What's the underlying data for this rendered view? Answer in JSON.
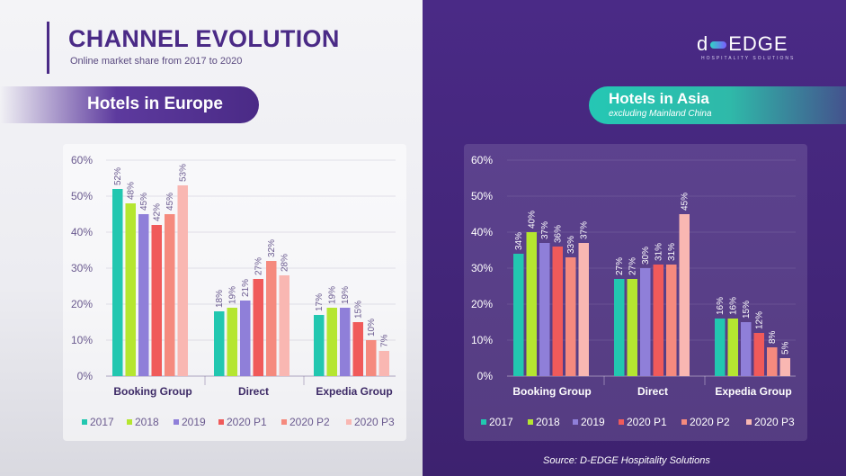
{
  "header": {
    "title": "CHANNEL EVOLUTION",
    "subtitle": "Online market share from 2017 to 2020"
  },
  "logo": {
    "text_left": "d",
    "text_right": "EDGE",
    "tagline": "HOSPITALITY SOLUTIONS"
  },
  "europe_label": "Hotels in Europe",
  "asia_label": "Hotels in Asia",
  "asia_sublabel": "excluding Mainland China",
  "source": "Source: D-EDGE Hospitality Solutions",
  "colors": {
    "2017": "#22c7b0",
    "2018": "#b5e630",
    "2019": "#8f7fd9",
    "2020 P1": "#f05a5a",
    "2020 P2": "#f58a7e",
    "2020 P3": "#f9b7b2"
  },
  "chart_data": [
    {
      "type": "bar",
      "title": "Hotels in Europe",
      "categories": [
        "Booking Group",
        "Direct",
        "Expedia Group"
      ],
      "series": [
        {
          "name": "2017",
          "values": [
            52,
            18,
            17
          ]
        },
        {
          "name": "2018",
          "values": [
            48,
            19,
            19
          ]
        },
        {
          "name": "2019",
          "values": [
            45,
            21,
            19
          ]
        },
        {
          "name": "2020 P1",
          "values": [
            42,
            27,
            15
          ]
        },
        {
          "name": "2020 P2",
          "values": [
            45,
            32,
            10
          ]
        },
        {
          "name": "2020 P3",
          "values": [
            53,
            28,
            7
          ]
        }
      ],
      "yticks": [
        "0%",
        "10%",
        "20%",
        "30%",
        "40%",
        "50%",
        "60%"
      ],
      "ylim": [
        0,
        60
      ],
      "value_suffix": "%",
      "legend_position": "bottom"
    },
    {
      "type": "bar",
      "title": "Hotels in Asia",
      "categories": [
        "Booking Group",
        "Direct",
        "Expedia Group"
      ],
      "series": [
        {
          "name": "2017",
          "values": [
            34,
            27,
            16
          ]
        },
        {
          "name": "2018",
          "values": [
            40,
            27,
            16
          ]
        },
        {
          "name": "2019",
          "values": [
            37,
            30,
            15
          ]
        },
        {
          "name": "2020 P1",
          "values": [
            36,
            31,
            12
          ]
        },
        {
          "name": "2020 P2",
          "values": [
            33,
            31,
            8
          ]
        },
        {
          "name": "2020 P3",
          "values": [
            37,
            45,
            5
          ]
        }
      ],
      "yticks": [
        "0%",
        "10%",
        "20%",
        "30%",
        "40%",
        "50%",
        "60%"
      ],
      "ylim": [
        0,
        60
      ],
      "value_suffix": "%",
      "legend_position": "bottom"
    }
  ]
}
